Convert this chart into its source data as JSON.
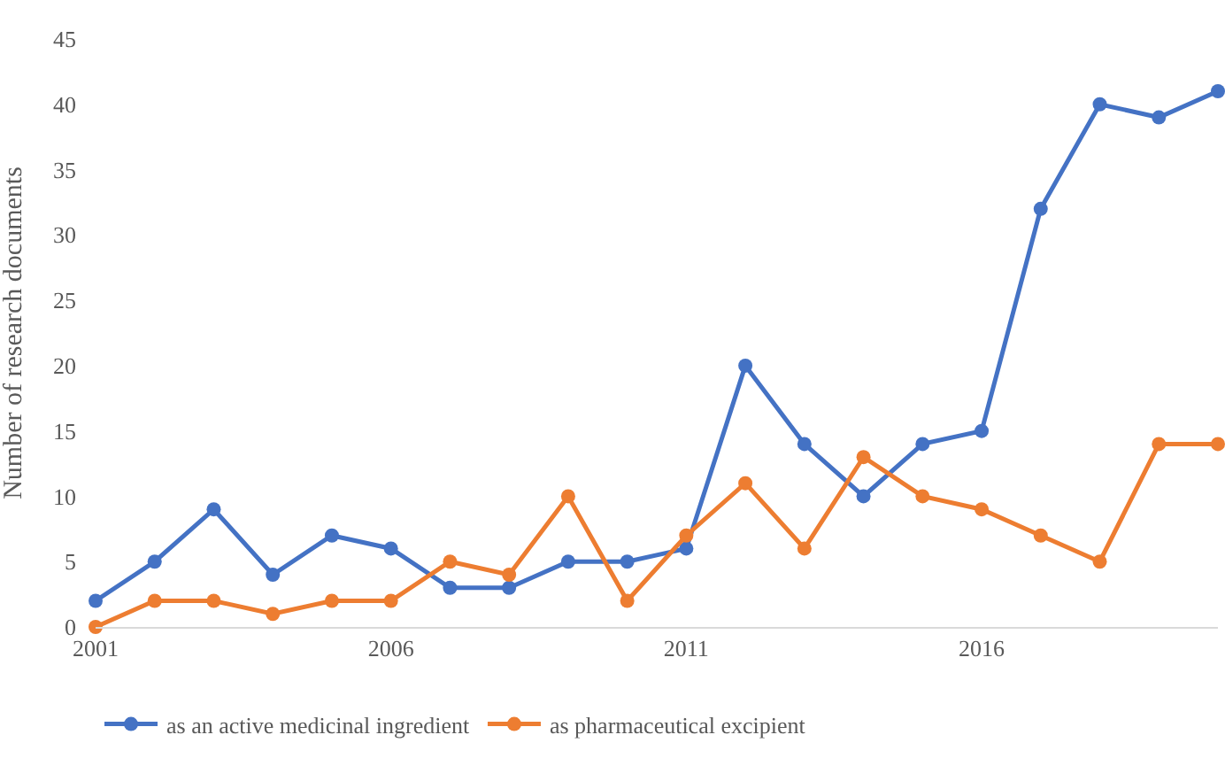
{
  "chart_data": {
    "type": "line",
    "ylabel": "Number of research documents",
    "x": [
      2001,
      2002,
      2003,
      2004,
      2005,
      2006,
      2007,
      2008,
      2009,
      2010,
      2011,
      2012,
      2013,
      2014,
      2015,
      2016,
      2017,
      2018,
      2019,
      2020
    ],
    "series": [
      {
        "name": "as an active medicinal ingredient",
        "color": "#4472c4",
        "values": [
          2,
          5,
          9,
          4,
          7,
          6,
          3,
          3,
          5,
          5,
          6,
          20,
          14,
          10,
          14,
          15,
          32,
          40,
          39,
          41
        ]
      },
      {
        "name": "as pharmaceutical excipient",
        "color": "#ed7d31",
        "values": [
          0,
          2,
          2,
          1,
          2,
          2,
          5,
          4,
          10,
          2,
          7,
          11,
          6,
          13,
          10,
          9,
          7,
          5,
          14,
          14
        ]
      }
    ],
    "xlim": [
      2001,
      2020
    ],
    "xticks": [
      2001,
      2006,
      2011,
      2016
    ],
    "ylim": [
      0,
      45
    ],
    "yticks": [
      0,
      5,
      10,
      15,
      20,
      25,
      30,
      35,
      40,
      45
    ],
    "grid": false,
    "legend": "bottom",
    "marker": "circle",
    "line_style": "solid"
  }
}
